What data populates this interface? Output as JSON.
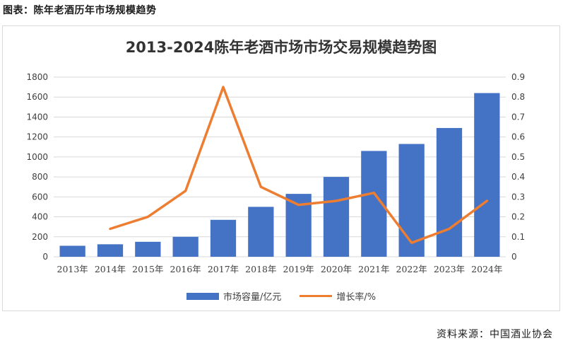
{
  "figure_caption": "图表：陈年老酒历年市场规模趋势",
  "source": "资料来源：中国酒业协会",
  "colors": {
    "bar": "#4472c4",
    "line": "#ed7d31",
    "grid": "#d9d9d9"
  },
  "chart_data": {
    "type": "bar",
    "title": "2013-2024陈年老酒市场市场交易规模趋势图",
    "categories": [
      "2013年",
      "2014年",
      "2015年",
      "2016年",
      "2017年",
      "2018年",
      "2019年",
      "2020年",
      "2021年",
      "2022年",
      "2023年",
      "2024年"
    ],
    "y_left": {
      "ylim": [
        0,
        1800
      ],
      "ticks": [
        "0",
        "200",
        "400",
        "600",
        "800",
        "1000",
        "1200",
        "1400",
        "1600",
        "1800"
      ]
    },
    "y_right": {
      "ylim": [
        0,
        0.9
      ],
      "ticks": [
        "0",
        "0.1",
        "0.2",
        "0.3",
        "0.4",
        "0.5",
        "0.6",
        "0.7",
        "0.8",
        "0.9"
      ]
    },
    "grid": true,
    "legend_position": "bottom",
    "series": [
      {
        "name": "市场容量/亿元",
        "type": "bar",
        "axis": "left",
        "values": [
          110,
          125,
          150,
          200,
          370,
          500,
          630,
          800,
          1060,
          1130,
          1290,
          1640
        ]
      },
      {
        "name": "增长率/%",
        "type": "line",
        "axis": "right",
        "values": [
          null,
          0.14,
          0.2,
          0.33,
          0.85,
          0.35,
          0.26,
          0.28,
          0.32,
          0.07,
          0.14,
          0.28
        ]
      }
    ]
  }
}
